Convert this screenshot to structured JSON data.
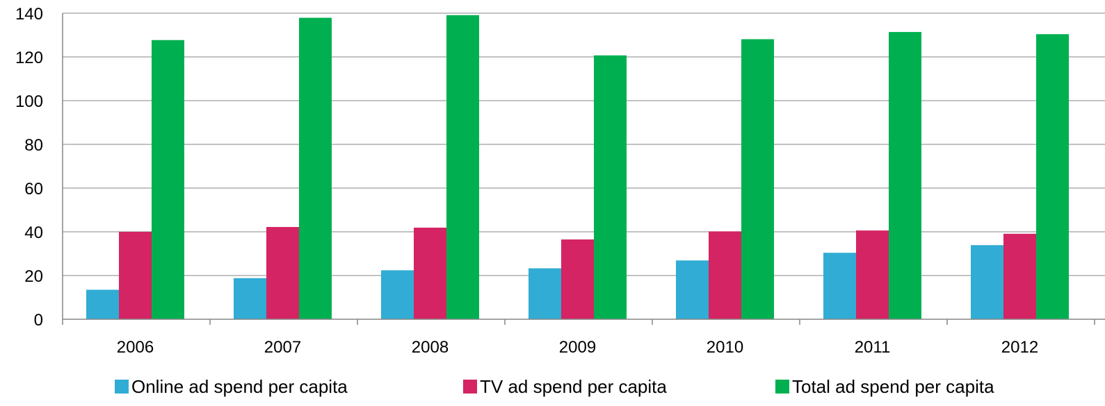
{
  "chart_data": {
    "type": "bar",
    "title": "",
    "xlabel": "",
    "ylabel": "",
    "categories": [
      "2006",
      "2007",
      "2008",
      "2009",
      "2010",
      "2011",
      "2012"
    ],
    "series": [
      {
        "name": "Online ad spend per capita",
        "color": "#31acd4",
        "values": [
          13.5,
          18.8,
          22.4,
          23.3,
          26.9,
          30.4,
          33.9
        ]
      },
      {
        "name": "TV ad spend per capita",
        "color": "#d42463",
        "values": [
          40.0,
          42.2,
          41.9,
          36.5,
          40.2,
          40.6,
          39.1
        ]
      },
      {
        "name": "Total ad spend per capita",
        "color": "#00b050",
        "values": [
          127.7,
          137.9,
          139.1,
          120.7,
          128.1,
          131.4,
          130.4
        ]
      }
    ],
    "ylim": [
      0,
      140
    ],
    "yticks": [
      0,
      20,
      40,
      60,
      80,
      100,
      120,
      140
    ],
    "grid": true,
    "legend_position": "bottom"
  }
}
